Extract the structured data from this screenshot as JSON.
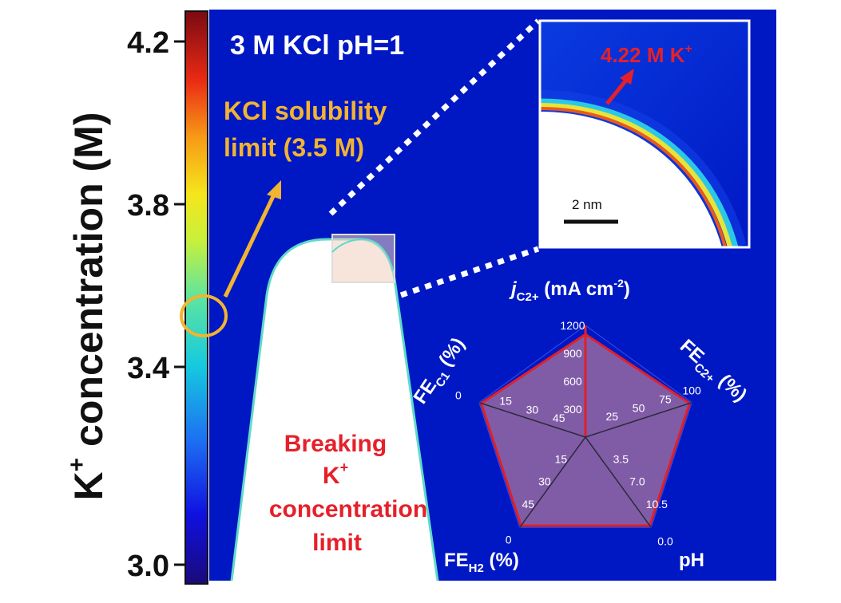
{
  "colorbar": {
    "label_main": "K",
    "label_sup": "+",
    "label_rest": " concentration (M)",
    "ticks": [
      "4.2",
      "3.8",
      "3.4",
      "3.0"
    ]
  },
  "condition": "3 M KCl  pH=1",
  "solubility": {
    "line1": "KCl solubility",
    "line2": "limit (3.5 M)"
  },
  "inset": {
    "peak_value": "4.22 M K",
    "peak_sup": "+",
    "scale_bar": "2 nm"
  },
  "breaking": {
    "line1": "Breaking",
    "line2_main": "K",
    "line2_sup": "+",
    "line3": "concentration",
    "line4": "limit"
  },
  "colors": {
    "background": "#0018c4",
    "radar_fill": "#8c63a3",
    "radar_edge": "#e0202a",
    "accent_orange": "#f2b431"
  },
  "chart_data": {
    "type": "radar",
    "axes": [
      {
        "label": "j",
        "sub": "C2+",
        "unit": " (mA cm",
        "unit_sup": "-2",
        "unit_end": ")",
        "ticks": [
          "300",
          "600",
          "900",
          "1200"
        ],
        "value_fraction": 0.92
      },
      {
        "label": "FE",
        "sub": "C2+",
        "unit": " (%)",
        "ticks": [
          "25",
          "50",
          "75",
          "100"
        ],
        "value_fraction": 0.98
      },
      {
        "label": "pH",
        "sub": "",
        "unit": "",
        "ticks": [
          "3.5",
          "7.0",
          "10.5",
          "0.0"
        ],
        "value_fraction": 0.98
      },
      {
        "label": "FE",
        "sub": "H2",
        "unit": " (%)",
        "ticks": [
          "15",
          "30",
          "45",
          "0"
        ],
        "value_fraction": 0.98
      },
      {
        "label": "FE",
        "sub": "C1",
        "unit": " (%)",
        "ticks": [
          "45",
          "30",
          "15",
          "0"
        ],
        "value_fraction": 0.98
      }
    ]
  }
}
